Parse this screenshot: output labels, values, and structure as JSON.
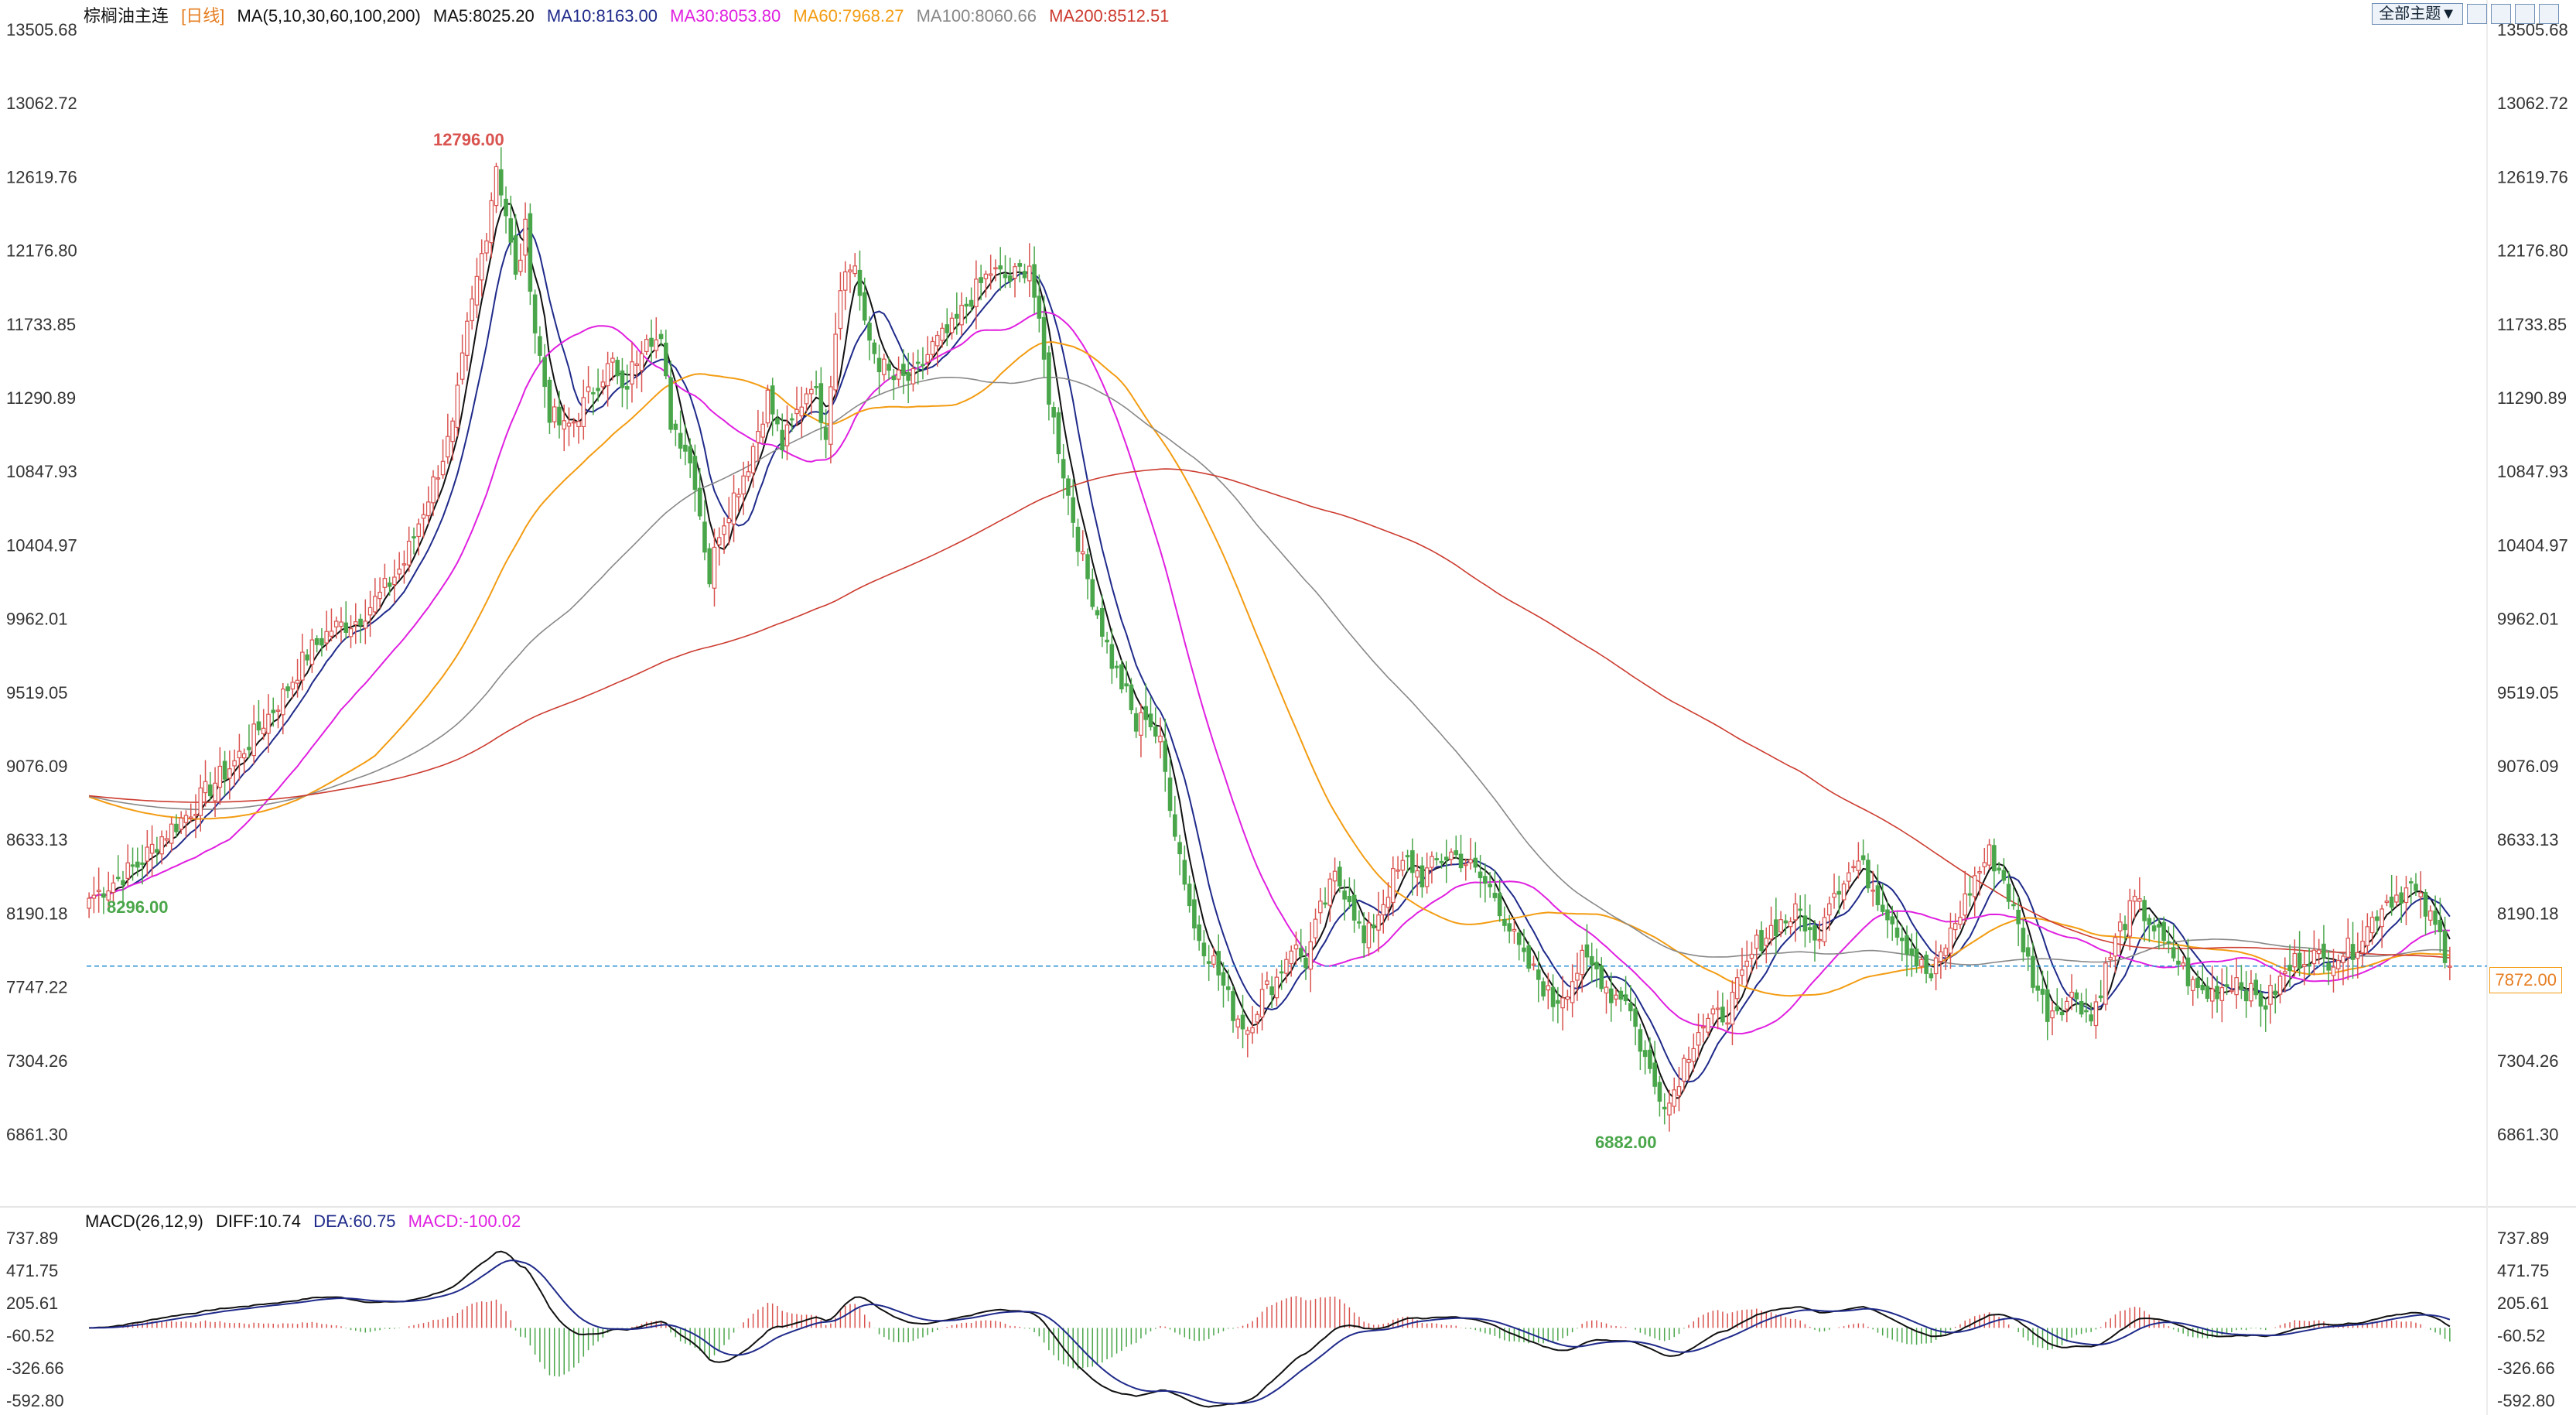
{
  "header": {
    "symbol": "棕榈油主连",
    "period": "[日线]",
    "ma_params": "MA(5,10,30,60,100,200)",
    "ma5": "MA5:8025.20",
    "ma10": "MA10:8163.00",
    "ma30": "MA30:8053.80",
    "ma60": "MA60:7968.27",
    "ma100": "MA100:8060.66",
    "ma200": "MA200:8512.51"
  },
  "toolbar": {
    "topics_label": "全部主题▼"
  },
  "colors": {
    "up": "#d9534f",
    "down": "#4aa64a",
    "ma5": "#111111",
    "ma10": "#1f2a8a",
    "ma30": "#e020e0",
    "ma60": "#f39c12",
    "ma100": "#888888",
    "ma200": "#cc3b2f",
    "last": "#2a8fd6"
  },
  "price_tag": "7872.00",
  "macd_header": {
    "params": "MACD(26,12,9)",
    "diff": "DIFF:10.74",
    "dea": "DEA:60.75",
    "macd": "MACD:-100.02"
  },
  "chart_data": {
    "type": "candlestick",
    "y_ticks": [
      "13505.68",
      "13062.72",
      "12619.76",
      "12176.80",
      "11733.85",
      "11290.89",
      "10847.93",
      "10404.97",
      "9962.01",
      "9519.05",
      "9076.09",
      "8633.13",
      "8190.18",
      "7747.22",
      "7304.26",
      "6861.30"
    ],
    "ylim": [
      6861.3,
      13505.68
    ],
    "annotations": {
      "high": "12796.00",
      "start": "8296.00",
      "low": "6882.00"
    },
    "last_price": 7872.0,
    "close_anchors": [
      [
        0,
        8280
      ],
      [
        5,
        8380
      ],
      [
        10,
        8480
      ],
      [
        15,
        8650
      ],
      [
        20,
        8780
      ],
      [
        25,
        8950
      ],
      [
        30,
        9100
      ],
      [
        35,
        9300
      ],
      [
        40,
        9500
      ],
      [
        45,
        9750
      ],
      [
        50,
        9900
      ],
      [
        55,
        9950
      ],
      [
        60,
        10100
      ],
      [
        65,
        10300
      ],
      [
        70,
        10700
      ],
      [
        75,
        11100
      ],
      [
        78,
        11700
      ],
      [
        82,
        12300
      ],
      [
        84,
        12700
      ],
      [
        86,
        12400
      ],
      [
        88,
        12000
      ],
      [
        90,
        12300
      ],
      [
        92,
        11700
      ],
      [
        95,
        11200
      ],
      [
        98,
        11100
      ],
      [
        100,
        11150
      ],
      [
        105,
        11400
      ],
      [
        108,
        11500
      ],
      [
        110,
        11300
      ],
      [
        115,
        11700
      ],
      [
        118,
        11600
      ],
      [
        120,
        11150
      ],
      [
        123,
        11000
      ],
      [
        125,
        10800
      ],
      [
        128,
        10200
      ],
      [
        130,
        10500
      ],
      [
        133,
        10700
      ],
      [
        136,
        10900
      ],
      [
        140,
        11300
      ],
      [
        143,
        11000
      ],
      [
        146,
        11200
      ],
      [
        149,
        11400
      ],
      [
        152,
        11100
      ],
      [
        155,
        12000
      ],
      [
        158,
        12100
      ],
      [
        160,
        11700
      ],
      [
        163,
        11500
      ],
      [
        166,
        11400
      ],
      [
        170,
        11400
      ],
      [
        174,
        11600
      ],
      [
        178,
        11700
      ],
      [
        182,
        11900
      ],
      [
        186,
        12050
      ],
      [
        190,
        12000
      ],
      [
        194,
        12100
      ],
      [
        196,
        11700
      ],
      [
        198,
        11300
      ],
      [
        202,
        10700
      ],
      [
        205,
        10300
      ],
      [
        208,
        10000
      ],
      [
        211,
        9700
      ],
      [
        214,
        9500
      ],
      [
        216,
        9300
      ],
      [
        218,
        9400
      ],
      [
        221,
        9200
      ],
      [
        224,
        8700
      ],
      [
        228,
        8100
      ],
      [
        232,
        7900
      ],
      [
        236,
        7600
      ],
      [
        239,
        7500
      ],
      [
        242,
        7700
      ],
      [
        245,
        7800
      ],
      [
        248,
        8000
      ],
      [
        251,
        7900
      ],
      [
        254,
        8200
      ],
      [
        257,
        8400
      ],
      [
        260,
        8300
      ],
      [
        263,
        8000
      ],
      [
        266,
        8200
      ],
      [
        269,
        8400
      ],
      [
        272,
        8500
      ],
      [
        275,
        8400
      ],
      [
        278,
        8500
      ],
      [
        281,
        8550
      ],
      [
        284,
        8500
      ],
      [
        287,
        8400
      ],
      [
        290,
        8300
      ],
      [
        293,
        8100
      ],
      [
        296,
        7900
      ],
      [
        299,
        7800
      ],
      [
        302,
        7650
      ],
      [
        305,
        7750
      ],
      [
        308,
        7900
      ],
      [
        311,
        7850
      ],
      [
        314,
        7700
      ],
      [
        317,
        7700
      ],
      [
        320,
        7400
      ],
      [
        323,
        7150
      ],
      [
        326,
        7050
      ],
      [
        329,
        7300
      ],
      [
        332,
        7500
      ],
      [
        335,
        7550
      ],
      [
        338,
        7600
      ],
      [
        341,
        7800
      ],
      [
        344,
        8000
      ],
      [
        347,
        8100
      ],
      [
        350,
        8150
      ],
      [
        353,
        8200
      ],
      [
        356,
        8000
      ],
      [
        359,
        8300
      ],
      [
        362,
        8400
      ],
      [
        365,
        8500
      ],
      [
        368,
        8350
      ],
      [
        371,
        8200
      ],
      [
        374,
        8050
      ],
      [
        377,
        7900
      ],
      [
        380,
        7800
      ],
      [
        383,
        8000
      ],
      [
        386,
        8200
      ],
      [
        389,
        8400
      ],
      [
        392,
        8550
      ],
      [
        395,
        8400
      ],
      [
        398,
        8100
      ],
      [
        401,
        7800
      ],
      [
        404,
        7600
      ],
      [
        407,
        7650
      ],
      [
        410,
        7700
      ],
      [
        413,
        7550
      ],
      [
        416,
        7850
      ],
      [
        419,
        8100
      ],
      [
        422,
        8250
      ],
      [
        425,
        8150
      ],
      [
        428,
        8000
      ],
      [
        431,
        7900
      ],
      [
        434,
        7750
      ],
      [
        437,
        7700
      ],
      [
        440,
        7750
      ],
      [
        443,
        7800
      ],
      [
        446,
        7700
      ],
      [
        449,
        7650
      ],
      [
        452,
        7780
      ],
      [
        455,
        7900
      ],
      [
        458,
        7950
      ],
      [
        461,
        7900
      ],
      [
        464,
        7950
      ],
      [
        467,
        7980
      ],
      [
        470,
        8100
      ],
      [
        473,
        8250
      ],
      [
        476,
        8300
      ],
      [
        479,
        8350
      ],
      [
        482,
        8200
      ],
      [
        485,
        8050
      ],
      [
        487,
        7872
      ]
    ],
    "macd_ticks": [
      "737.89",
      "471.75",
      "205.61",
      "-60.52",
      "-326.66",
      "-592.80"
    ],
    "macd_ylim": [
      -592.8,
      737.89
    ]
  }
}
